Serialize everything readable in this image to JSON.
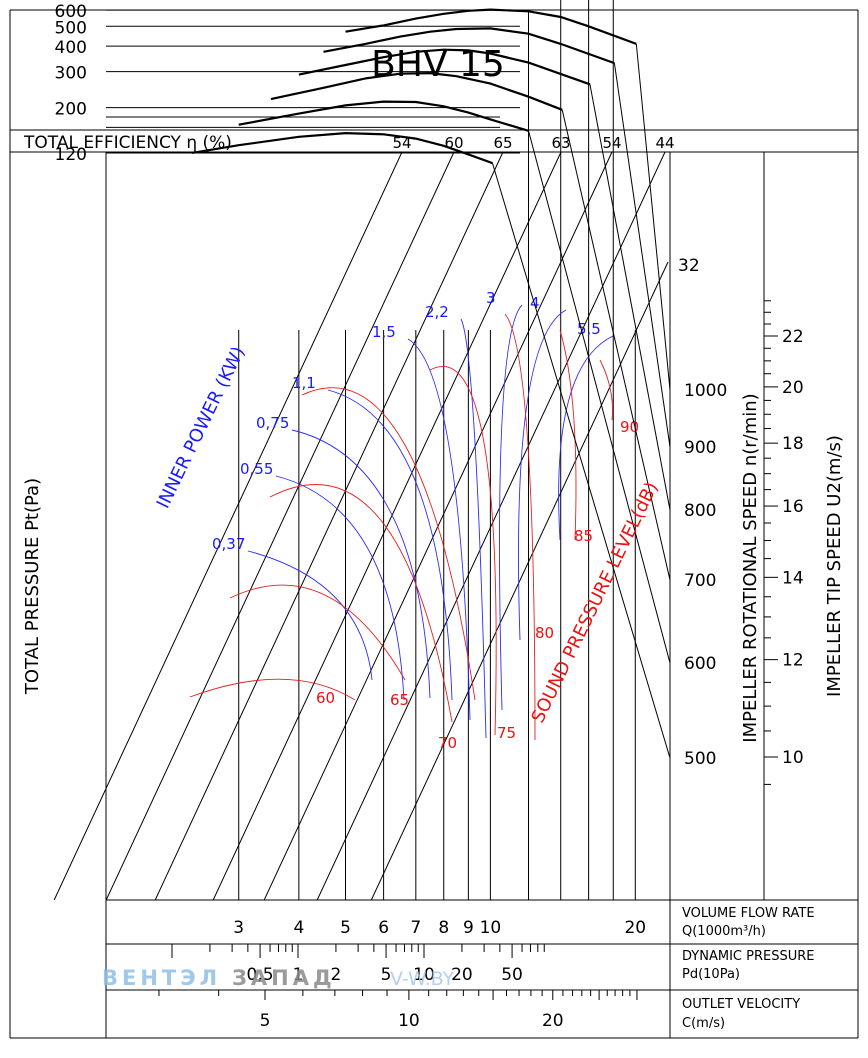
{
  "chart_data": {
    "type": "line",
    "title": "BHV 15",
    "efficiency": {
      "label": "TOTAL EFFICIENCY η (%)",
      "values": [
        "54",
        "60",
        "65",
        "63",
        "54",
        "44"
      ],
      "end_label": "32"
    },
    "y_axis": {
      "label": "TOTAL PRESSURE Pt(Pa)",
      "scale": "log",
      "ticks": [
        "600",
        "500",
        "400",
        "300",
        "200",
        "120"
      ]
    },
    "rpm_axis": {
      "label": "IMPELLER ROTATIONAL SPEED n(r/min)",
      "ticks": [
        "1000",
        "900",
        "800",
        "700",
        "600",
        "500"
      ]
    },
    "tip_axis": {
      "label": "IMPELLER TIP SPEED U2(m/s)",
      "ticks": [
        "22",
        "20",
        "18",
        "16",
        "14",
        "12",
        "10"
      ]
    },
    "inner_power": {
      "label": "INNER POWER (KW)",
      "values": [
        "0,37",
        "0,55",
        "0,75",
        "1,1",
        "1,5",
        "2,2",
        "3",
        "4",
        "5,5"
      ]
    },
    "sound": {
      "label": "SOUND PRESSURE LEVEL(dB)",
      "values": [
        "60",
        "65",
        "70",
        "75",
        "80",
        "85",
        "90"
      ]
    },
    "flow_axis": {
      "label": "VOLUME FLOW RATE",
      "unit": "Q(1000m³/h)",
      "scale": "log",
      "ticks": [
        "3",
        "4",
        "5",
        "6",
        "7",
        "8",
        "9",
        "10",
        "20"
      ]
    },
    "dynamic_axis": {
      "label": "DYNAMIC PRESSURE",
      "unit": "Pd(10Pa)",
      "ticks": [
        "0,5",
        "1",
        "2",
        "5",
        "10",
        "20",
        "50"
      ]
    },
    "velocity_axis": {
      "label": "OUTLET VELOCITY",
      "unit": "C(m/s)",
      "ticks": [
        "5",
        "10",
        "20"
      ]
    },
    "series": [
      {
        "name": "500",
        "points": [
          [
            2.4,
            120
          ],
          [
            3.0,
            131
          ],
          [
            4.0,
            144
          ],
          [
            5.0,
            150
          ],
          [
            6.0,
            148
          ],
          [
            7.0,
            141
          ],
          [
            8.0,
            130
          ],
          [
            9.0,
            118
          ],
          [
            10.1,
            107
          ]
        ]
      },
      {
        "name": "600",
        "points": [
          [
            3.0,
            165
          ],
          [
            4.0,
            187
          ],
          [
            5.0,
            205
          ],
          [
            6.0,
            214
          ],
          [
            7.0,
            213
          ],
          [
            8.0,
            203
          ],
          [
            9.0,
            189
          ],
          [
            10.0,
            175
          ],
          [
            12.0,
            154
          ]
        ]
      },
      {
        "name": "700",
        "points": [
          [
            3.5,
            220
          ],
          [
            4.5,
            250
          ],
          [
            5.5,
            278
          ],
          [
            6.5,
            293
          ],
          [
            7.5,
            295
          ],
          [
            8.5,
            285
          ],
          [
            10.0,
            262
          ],
          [
            12.0,
            226
          ],
          [
            14.1,
            195
          ]
        ]
      },
      {
        "name": "800",
        "points": [
          [
            4.0,
            290
          ],
          [
            5.0,
            323
          ],
          [
            6.0,
            353
          ],
          [
            7.0,
            375
          ],
          [
            8.0,
            384
          ],
          [
            9.0,
            381
          ],
          [
            10.0,
            368
          ],
          [
            12.0,
            332
          ],
          [
            16.1,
            260
          ]
        ]
      },
      {
        "name": "900",
        "points": [
          [
            4.5,
            375
          ],
          [
            5.5,
            410
          ],
          [
            6.5,
            445
          ],
          [
            7.5,
            470
          ],
          [
            8.5,
            485
          ],
          [
            10.0,
            488
          ],
          [
            12.0,
            460
          ],
          [
            14.0,
            410
          ],
          [
            18.1,
            330
          ]
        ]
      },
      {
        "name": "1000",
        "points": [
          [
            5.0,
            470
          ],
          [
            6.0,
            505
          ],
          [
            7.0,
            545
          ],
          [
            8.0,
            575
          ],
          [
            9.0,
            595
          ],
          [
            10.0,
            603
          ],
          [
            12.0,
            592
          ],
          [
            14.0,
            555
          ],
          [
            16.0,
            500
          ],
          [
            20.1,
            410
          ]
        ]
      }
    ]
  },
  "watermark": {
    "brand_a": "ВЕНТЭЛ",
    "brand_b": "ЗАПАД",
    "site": "V-W.BY"
  }
}
